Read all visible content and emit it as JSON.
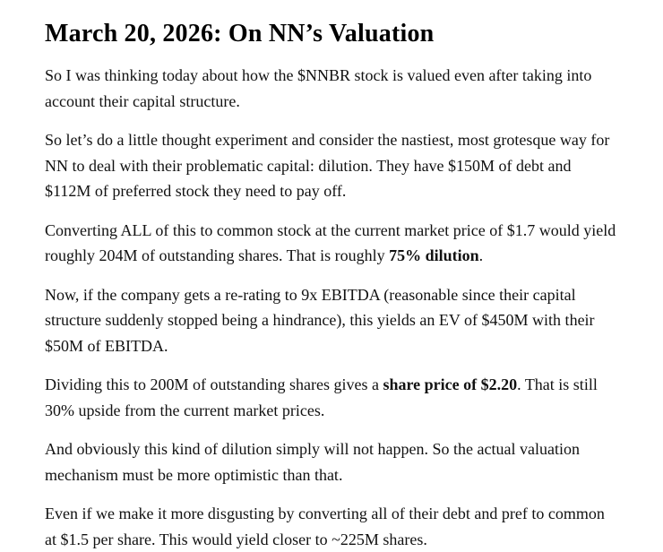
{
  "colors": {
    "background": "#ffffff",
    "body_text": "#111111",
    "title_text": "#000000"
  },
  "post": {
    "title": "March 20, 2026: On NN’s Valuation",
    "paragraphs": [
      {
        "segments": [
          {
            "text": "So I was thinking today about how the $NNBR stock is valued even after taking into account their capital structure.",
            "bold": false
          }
        ]
      },
      {
        "segments": [
          {
            "text": "So let’s do a little thought experiment and consider the nastiest, most grotesque way for NN to deal with their problematic capital: dilution. They have $150M of debt and $112M of preferred stock they need to pay off.",
            "bold": false
          }
        ]
      },
      {
        "segments": [
          {
            "text": "Converting ALL of this to common stock at the current market price of $1.7 would yield roughly 204M of outstanding shares. That is roughly ",
            "bold": false
          },
          {
            "text": "75% dilution",
            "bold": true
          },
          {
            "text": ".",
            "bold": false
          }
        ]
      },
      {
        "segments": [
          {
            "text": "Now, if the company gets a re-rating to 9x EBITDA (reasonable since their capital structure suddenly stopped being a hindrance), this yields an EV of $450M with their $50M of EBITDA.",
            "bold": false
          }
        ]
      },
      {
        "segments": [
          {
            "text": "Dividing this to 200M of outstanding shares gives a ",
            "bold": false
          },
          {
            "text": "share price of $2.20",
            "bold": true
          },
          {
            "text": ". That is still 30% upside from the current market prices.",
            "bold": false
          }
        ]
      },
      {
        "segments": [
          {
            "text": "And obviously this kind of dilution simply will not happen. So the actual valuation mechanism must be more optimistic than that.",
            "bold": false
          }
        ]
      },
      {
        "segments": [
          {
            "text": "Even if we make it more disgusting by converting all of their debt and pref to common at $1.5 per share. This would yield closer to ~225M shares.",
            "bold": false
          }
        ]
      }
    ]
  }
}
